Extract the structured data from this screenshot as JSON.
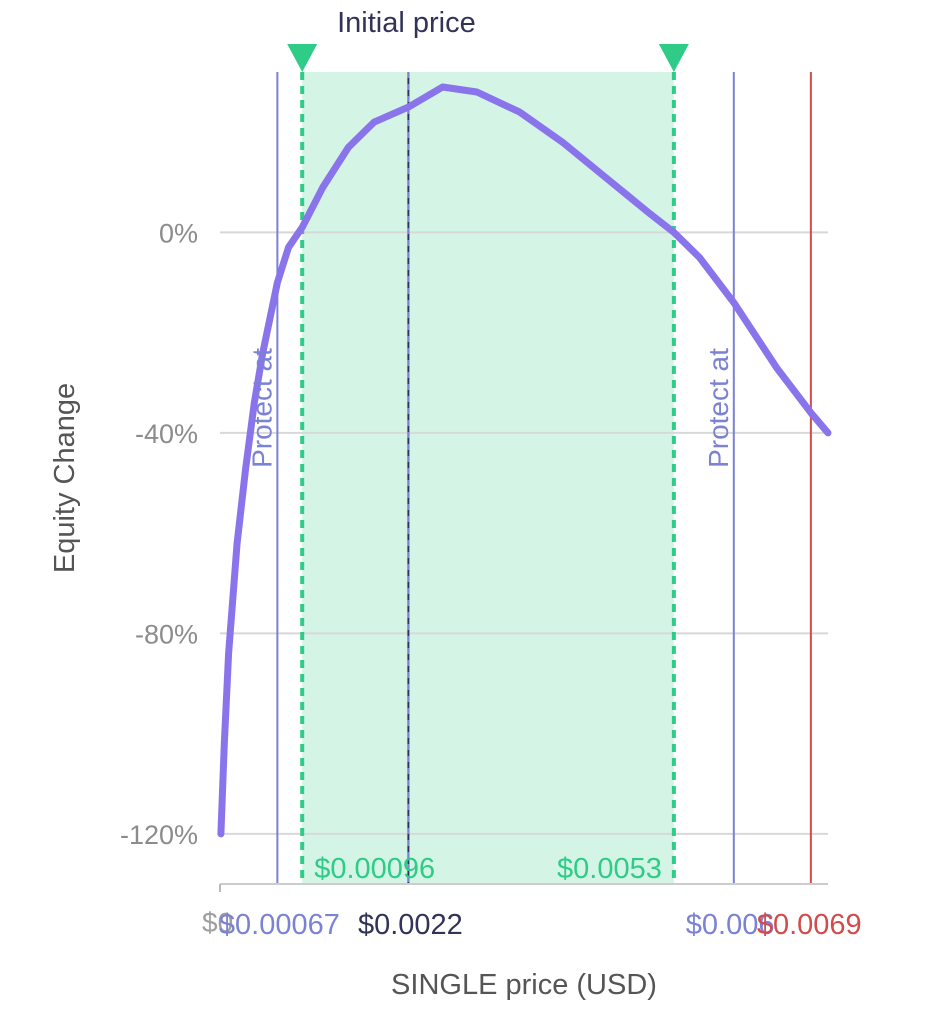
{
  "chart_data": {
    "type": "line",
    "title": "",
    "xlabel": "SINGLE price (USD)",
    "ylabel": "Equity Change",
    "xlim": [
      0,
      0.0071
    ],
    "ylim": [
      -130,
      32
    ],
    "y_ticks": [
      {
        "value": 0,
        "label": "0%"
      },
      {
        "value": -40,
        "label": "-40%"
      },
      {
        "value": -80,
        "label": "-80%"
      },
      {
        "value": -120,
        "label": "-120%"
      }
    ],
    "x_ticks": [
      {
        "value": 0,
        "label": "$0",
        "color": "#9e9e9e"
      }
    ],
    "grid": true,
    "series": [
      {
        "color": "#8a74ec",
        "x": [
          1e-05,
          5e-05,
          0.0001,
          0.0002,
          0.0003,
          0.0004,
          0.0005,
          0.00067,
          0.0008,
          0.00096,
          0.0012,
          0.0015,
          0.0018,
          0.0022,
          0.0026,
          0.003,
          0.0035,
          0.004,
          0.0045,
          0.005,
          0.0053,
          0.0056,
          0.006,
          0.0065,
          0.0069,
          0.0071
        ],
        "y": [
          -120,
          -102,
          -84,
          -62,
          -47,
          -34,
          -24,
          -10,
          -3,
          1,
          9,
          17,
          22,
          25,
          29,
          28,
          24,
          18,
          11,
          4,
          0,
          -5,
          -14,
          -27,
          -36,
          -40
        ]
      }
    ],
    "range": {
      "lower": 0.00096,
      "upper": 0.0053,
      "lower_label": "$0.00096",
      "upper_label": "$0.0053",
      "color": "#2ecc87",
      "fill": "#d4f5e6"
    },
    "markers": [
      {
        "value": 0.00067,
        "label": "$0.00067",
        "text": "Protect at",
        "color": "#7b82d4"
      },
      {
        "value": 0.0022,
        "label": "$0.0022",
        "text": "Initial price",
        "color": "#33335a",
        "dash_color": "#7b82d4"
      },
      {
        "value": 0.006,
        "label": "$0.006",
        "text": "Protect at",
        "color": "#7b82d4"
      },
      {
        "value": 0.0069,
        "label": "$0.0069",
        "text": "",
        "color": "#d34b4b"
      }
    ]
  }
}
